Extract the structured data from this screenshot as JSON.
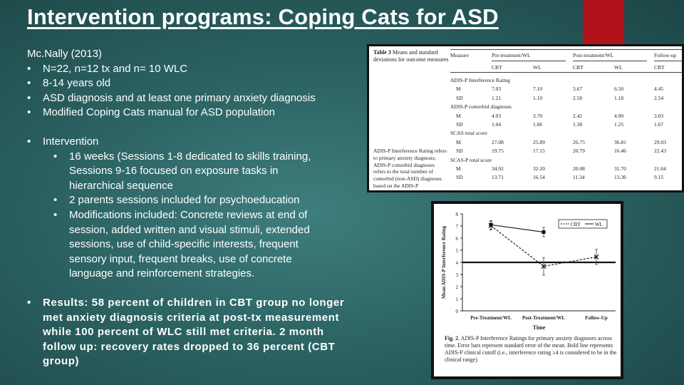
{
  "slide": {
    "title": "Intervention programs:  Coping Cats for ASD",
    "citation": "Mc.Nally (2013)",
    "bullets": [
      "N=22, n=12 tx and n= 10 WLC",
      "8-14 years old",
      "ASD diagnosis and at least one primary anxiety diagnosis",
      "Modified Coping Cats manual for ASD population"
    ],
    "intervention_label": "Intervention",
    "sub_bullets": [
      [
        "16 weeks (Sessions 1-8 dedicated to skills training,",
        "Sessions 9-16 focused on exposure tasks in",
        "hierarchical sequence"
      ],
      [
        "2 parents sessions included for psychoeducation"
      ],
      [
        "Modifications included:  Concrete reviews at end of",
        "session, added written and visual stimuli, extended",
        "sessions, use of child-specific interests, frequent",
        "sensory input, frequent breaks, use of concrete",
        "language and reinforcement strategies."
      ]
    ],
    "results": [
      "Results:  58 percent of children in CBT group no longer",
      "met anxiety diagnosis criteria at post-tx measurement",
      "while 100 percent of WLC still met criteria.  2 month",
      "follow up:  recovery rates dropped to 36 percent (CBT",
      "group)"
    ],
    "bullet_glyph": "•"
  },
  "table": {
    "caption_bold": "Table 3",
    "caption": " Means and standard deviations for outcome measures",
    "header": [
      "Measure",
      "Pre-treatment/WL",
      "Post-treatment/WL",
      "Follow-up"
    ],
    "subheader": [
      "CBT",
      "WL",
      "CBT",
      "WL",
      "CBT"
    ],
    "rows": [
      {
        "label": "ADIS-P Interference Rating",
        "section": true
      },
      {
        "label": "M",
        "vals": [
          "7.03",
          "7.10",
          "3.67",
          "6.50",
          "4.45"
        ]
      },
      {
        "label": "SD",
        "vals": [
          "1.21",
          "1.10",
          "2.50",
          "1.18",
          "2.54"
        ]
      },
      {
        "label": "ADIS-P comorbid diagnoses",
        "section": true
      },
      {
        "label": "M",
        "vals": [
          "4.03",
          "3.70",
          "2.42",
          "4.00",
          "3.03"
        ]
      },
      {
        "label": "SD",
        "vals": [
          "1.04",
          "1.06",
          "1.38",
          "1.25",
          "1.67"
        ]
      },
      {
        "label": "SCAS total score",
        "section": true
      },
      {
        "label": "M",
        "vals": [
          "27.08",
          "25.89",
          "26.75",
          "36.81",
          "29.03"
        ]
      },
      {
        "label": "SD",
        "vals": [
          "19.75",
          "17.15",
          "20.79",
          "16.46",
          "22.43"
        ]
      },
      {
        "label": "SCAS-P total score",
        "section": true
      },
      {
        "label": "M",
        "vals": [
          "34.92",
          "32.20",
          "20.08",
          "31.70",
          "21.64"
        ]
      },
      {
        "label": "SD",
        "vals": [
          "13.71",
          "16.54",
          "11.34",
          "13.36",
          "9.15"
        ]
      }
    ],
    "footnote": "ADIS-P Interference Rating refers to primary anxiety diagnosis; ADIS-P comorbid diagnoses refers to the total number of comorbid (non-ASD) diagnoses based on the ADIS-P"
  },
  "chart_data": {
    "type": "line",
    "ylabel": "Mean ADIS-P Interference Rating",
    "xlabel": "Time",
    "categories": [
      "Pre-Treatment/WL",
      "Post-Treatment/WL",
      "Follow-Up"
    ],
    "ylim": [
      0,
      8
    ],
    "yticks": [
      "0",
      "1",
      "2",
      "3",
      "4",
      "5",
      "6",
      "7",
      "8"
    ],
    "series": [
      {
        "name": "CBT",
        "values": [
          7.03,
          3.67,
          4.45
        ],
        "errors": [
          0.35,
          0.72,
          0.62
        ],
        "style": "dashed",
        "color": "#222222"
      },
      {
        "name": "WL",
        "values": [
          7.1,
          6.5,
          null
        ],
        "errors": [
          0.35,
          0.38,
          null
        ],
        "style": "solid",
        "color": "#222222"
      }
    ],
    "cutoff": {
      "value": 4,
      "label": "Bold line"
    },
    "caption_bold": "Fig. 2",
    "caption": "ADIS-P Interference Ratings for primary anxiety diagnoses across time. Error bars represent standard error of the mean. Bold line represents ADIS-P clinical cutoff (i.e., interference rating ≥4 is considered to be in the clinical range)"
  }
}
